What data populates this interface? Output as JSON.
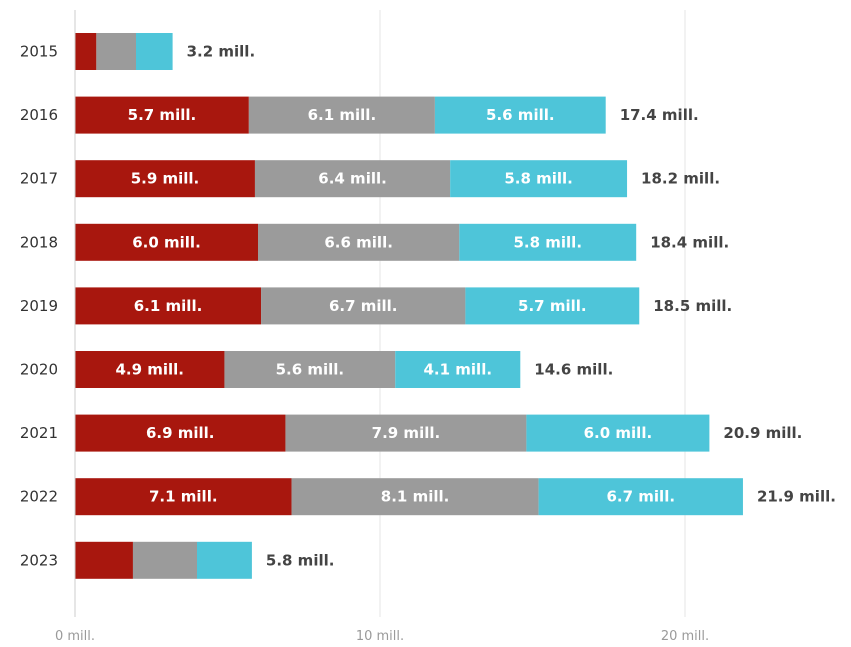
{
  "chart_data": {
    "type": "bar",
    "orientation": "horizontal",
    "stacked": true,
    "title": "",
    "xlabel": "",
    "ylabel": "",
    "categories": [
      "2015",
      "2016",
      "2017",
      "2018",
      "2019",
      "2020",
      "2021",
      "2022",
      "2023"
    ],
    "series": [
      {
        "color": "#a8170e",
        "values": [
          0.7,
          5.7,
          5.9,
          6.0,
          6.1,
          4.9,
          6.9,
          7.1,
          1.9
        ]
      },
      {
        "color": "#9b9b9b",
        "values": [
          1.3,
          6.1,
          6.4,
          6.6,
          6.7,
          5.6,
          7.9,
          8.1,
          2.1
        ]
      },
      {
        "color": "#4ec5d9",
        "values": [
          1.2,
          5.6,
          5.8,
          5.8,
          5.7,
          4.1,
          6.0,
          6.7,
          1.8
        ]
      }
    ],
    "segment_labels": [
      [
        "",
        "",
        ""
      ],
      [
        "5.7 mill.",
        "6.1 mill.",
        "5.6 mill."
      ],
      [
        "5.9 mill.",
        "6.4 mill.",
        "5.8 mill."
      ],
      [
        "6.0 mill.",
        "6.6 mill.",
        "5.8 mill."
      ],
      [
        "6.1 mill.",
        "6.7 mill.",
        "5.7 mill."
      ],
      [
        "4.9 mill.",
        "5.6 mill.",
        "4.1 mill."
      ],
      [
        "6.9 mill.",
        "7.9 mill.",
        "6.0 mill."
      ],
      [
        "7.1 mill.",
        "8.1 mill.",
        "6.7 mill."
      ],
      [
        "",
        "",
        ""
      ]
    ],
    "totals": [
      3.2,
      17.4,
      18.2,
      18.4,
      18.5,
      14.6,
      20.9,
      21.9,
      5.8
    ],
    "total_labels": [
      "3.2 mill.",
      "17.4 mill.",
      "18.2 mill.",
      "18.4 mill.",
      "18.5 mill.",
      "14.6 mill.",
      "20.9 mill.",
      "21.9 mill.",
      "5.8 mill."
    ],
    "xlim": [
      0,
      25
    ],
    "xticks": [
      0,
      10,
      20
    ],
    "xtick_labels": [
      "0 mill.",
      "10 mill.",
      "20 mill."
    ],
    "grid": true,
    "legend": "none"
  }
}
